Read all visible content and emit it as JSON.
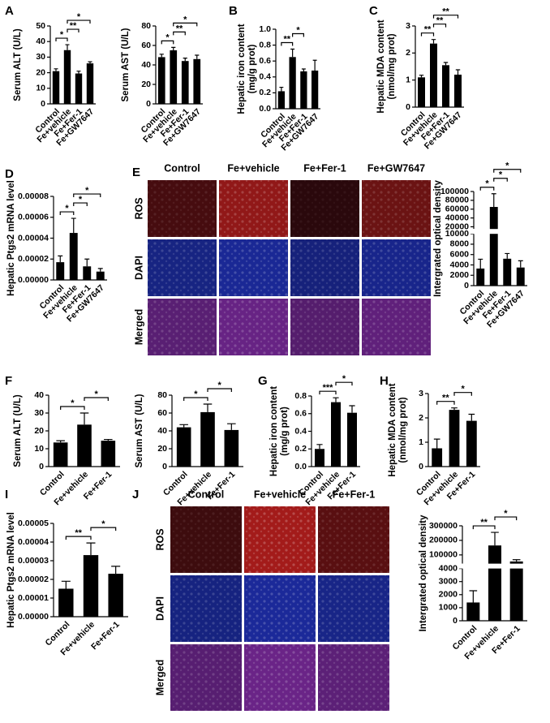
{
  "chart_data": [
    {
      "type": "bar",
      "panel": "A",
      "ylabel": [
        "Serum ALT  (U/L)"
      ],
      "categories": [
        "Control",
        "Fe+vehicle",
        "Fe+Fer-1",
        "Fe+GW7647"
      ],
      "values": [
        21,
        34.5,
        19.5,
        26
      ],
      "errors": [
        1.5,
        3.5,
        1.5,
        1
      ],
      "ylim": [
        0,
        50
      ],
      "yticks": [
        0,
        10,
        20,
        30,
        40,
        50
      ],
      "brackets": [
        {
          "between": [
            0,
            1
          ],
          "label": "*"
        },
        {
          "between": [
            1,
            2
          ],
          "label": "**"
        },
        {
          "between": [
            1,
            3
          ],
          "label": "*"
        }
      ]
    },
    {
      "type": "bar",
      "ylabel": [
        "Serum AST  (U/L)"
      ],
      "categories": [
        "Control",
        "Fe+vehicle",
        "Fe+Fer-1",
        "Fe+GW7647"
      ],
      "values": [
        48,
        55,
        44,
        46
      ],
      "errors": [
        3,
        3,
        3,
        4
      ],
      "ylim": [
        0,
        80
      ],
      "yticks": [
        0,
        20,
        40,
        60,
        80
      ],
      "brackets": [
        {
          "between": [
            0,
            1
          ],
          "label": "*"
        },
        {
          "between": [
            1,
            2
          ],
          "label": "**"
        },
        {
          "between": [
            1,
            3
          ],
          "label": "*"
        }
      ]
    },
    {
      "type": "bar",
      "panel": "B",
      "ylabel": [
        "Hepatic iron content",
        "(mg/g prot)"
      ],
      "categories": [
        "Control",
        "Fe+vehicle",
        "Fe+Fer-1",
        "Fe+GW7647"
      ],
      "values": [
        0.22,
        0.65,
        0.47,
        0.48
      ],
      "errors": [
        0.05,
        0.1,
        0.03,
        0.13
      ],
      "ylim": [
        0,
        1
      ],
      "yticks": [
        {
          "value": 0,
          "label": "0.0"
        },
        0.2,
        0.4,
        0.6,
        0.8,
        {
          "value": 1,
          "label": "1.0"
        }
      ],
      "brackets": [
        {
          "between": [
            0,
            1
          ],
          "label": "**"
        },
        {
          "between": [
            1,
            2
          ],
          "label": "*"
        }
      ]
    },
    {
      "type": "bar",
      "panel": "C",
      "ylabel": [
        "Hepatic MDA content",
        "(nmol/mg prot)"
      ],
      "categories": [
        "Control",
        "Fe+vehicle",
        "Fe+Fer-1",
        "Fe+GW7647"
      ],
      "values": [
        1.1,
        2.35,
        1.55,
        1.2
      ],
      "errors": [
        0.08,
        0.15,
        0.1,
        0.18
      ],
      "ylim": [
        0,
        3
      ],
      "yticks": [
        0,
        1,
        2,
        3
      ],
      "brackets": [
        {
          "between": [
            0,
            1
          ],
          "label": "**"
        },
        {
          "between": [
            1,
            2
          ],
          "label": "**"
        },
        {
          "between": [
            1,
            3
          ],
          "label": "**"
        }
      ]
    },
    {
      "type": "bar",
      "panel": "D",
      "ylabel": [
        "Hepatic Ptgs2 mRNA level"
      ],
      "categories": [
        "Control",
        "Fe+vehicle",
        "Fe+Fer-1",
        "Fe+GW7647"
      ],
      "values": [
        1.7e-05,
        4.5e-05,
        1.3e-05,
        8e-06
      ],
      "errors": [
        6e-06,
        1.4e-05,
        7e-06,
        3e-06
      ],
      "ylim": [
        0,
        8e-05
      ],
      "yticks": [
        {
          "value": 0,
          "label": "0.00000"
        },
        {
          "value": 2e-05,
          "label": "0.00002"
        },
        {
          "value": 4e-05,
          "label": "0.00004"
        },
        {
          "value": 6e-05,
          "label": "0.00006"
        },
        {
          "value": 8e-05,
          "label": "0.00008"
        }
      ],
      "brackets": [
        {
          "between": [
            0,
            1
          ],
          "label": "*"
        },
        {
          "between": [
            1,
            2
          ],
          "label": "*"
        },
        {
          "between": [
            1,
            3
          ],
          "label": "*"
        }
      ]
    },
    {
      "type": "bar",
      "ylabel": [
        "Intergrated optical density"
      ],
      "categories": [
        "Control",
        "Fe+vehicle",
        "Fe+Fer-1",
        "Fe+GW7647"
      ],
      "values": [
        3300,
        65000,
        5200,
        3500
      ],
      "errors": [
        1800,
        30000,
        1000,
        1300
      ],
      "segments": [
        {
          "ylim": [
            0,
            10000
          ],
          "yticks": [
            0,
            2000,
            4000,
            6000,
            8000,
            10000
          ]
        },
        {
          "ylim": [
            15000,
            100000
          ],
          "yticks": [
            20000,
            40000,
            60000,
            80000,
            100000
          ]
        }
      ],
      "brackets": [
        {
          "between": [
            0,
            1
          ],
          "label": "*"
        },
        {
          "between": [
            1,
            2
          ],
          "label": "*"
        },
        {
          "between": [
            1,
            3
          ],
          "label": "*"
        }
      ]
    },
    {
      "type": "bar",
      "panel": "F",
      "ylabel": [
        "Serum ALT  (U/L)"
      ],
      "categories": [
        "Control",
        "Fe+vehicle",
        "Fe+Fer-1"
      ],
      "values": [
        13.5,
        23.5,
        14.5
      ],
      "errors": [
        1,
        6.5,
        0.7
      ],
      "ylim": [
        0,
        40
      ],
      "yticks": [
        0,
        10,
        20,
        30,
        40
      ],
      "brackets": [
        {
          "between": [
            0,
            1
          ],
          "label": "*"
        },
        {
          "between": [
            1,
            2
          ],
          "label": "*"
        }
      ]
    },
    {
      "type": "bar",
      "ylabel": [
        "Serum AST  (U/L)"
      ],
      "categories": [
        "Control",
        "Fe+vehicle",
        "Fe+Fer-1"
      ],
      "values": [
        44,
        61,
        41
      ],
      "errors": [
        3,
        9,
        7
      ],
      "ylim": [
        0,
        80
      ],
      "yticks": [
        0,
        20,
        40,
        60,
        80
      ],
      "brackets": [
        {
          "between": [
            0,
            1
          ],
          "label": "*"
        },
        {
          "between": [
            1,
            2
          ],
          "label": "*"
        }
      ]
    },
    {
      "type": "bar",
      "panel": "G",
      "ylabel": [
        "Hepatic iron content",
        "(mg/g prot)"
      ],
      "categories": [
        "Control",
        "Fe+vehicle",
        "Fe+Fer-1"
      ],
      "values": [
        0.2,
        0.73,
        0.61
      ],
      "errors": [
        0.05,
        0.05,
        0.08
      ],
      "ylim": [
        0,
        0.8
      ],
      "yticks": [
        {
          "value": 0,
          "label": "0.0"
        },
        0.2,
        0.4,
        0.6,
        0.8
      ],
      "brackets": [
        {
          "between": [
            0,
            1
          ],
          "label": "***"
        },
        {
          "between": [
            1,
            2
          ],
          "label": "*"
        }
      ]
    },
    {
      "type": "bar",
      "panel": "H",
      "ylabel": [
        "Hepatic MDA content",
        "(nmol/mg prot)"
      ],
      "categories": [
        "Control",
        "Fe+vehicle",
        "Fe+Fer-1"
      ],
      "values": [
        0.75,
        2.33,
        1.88
      ],
      "errors": [
        0.38,
        0.08,
        0.27
      ],
      "ylim": [
        0,
        3
      ],
      "yticks": [
        0,
        1,
        2,
        3
      ],
      "brackets": [
        {
          "between": [
            0,
            1
          ],
          "label": "**"
        },
        {
          "between": [
            1,
            2
          ],
          "label": "*"
        }
      ]
    },
    {
      "type": "bar",
      "panel": "I",
      "ylabel": [
        "Hepatic Ptgs2 mRNA level"
      ],
      "categories": [
        "Control",
        "Fe+vehicle",
        "Fe+Fer-1"
      ],
      "values": [
        1.5e-05,
        3.3e-05,
        2.3e-05
      ],
      "errors": [
        4e-06,
        6.5e-06,
        4e-06
      ],
      "ylim": [
        0,
        5e-05
      ],
      "yticks": [
        {
          "value": 0,
          "label": "0.00000"
        },
        {
          "value": 1e-05,
          "label": "0.00001"
        },
        {
          "value": 2e-05,
          "label": "0.00002"
        },
        {
          "value": 3e-05,
          "label": "0.00003"
        },
        {
          "value": 4e-05,
          "label": "0.00004"
        },
        {
          "value": 5e-05,
          "label": "0.00005"
        }
      ],
      "brackets": [
        {
          "between": [
            0,
            1
          ],
          "label": "**"
        },
        {
          "between": [
            1,
            2
          ],
          "label": "*"
        }
      ]
    },
    {
      "type": "bar",
      "ylabel": [
        "Intergrated optical density"
      ],
      "categories": [
        "Control",
        "Fe+vehicle",
        "Fe+Fer-1"
      ],
      "values": [
        1400,
        165000,
        55000
      ],
      "errors": [
        900,
        90000,
        12000
      ],
      "segments": [
        {
          "ylim": [
            0,
            4000
          ],
          "yticks": [
            0,
            1000,
            2000,
            3000,
            4000
          ]
        },
        {
          "ylim": [
            40000,
            300000
          ],
          "yticks": [
            100000,
            200000,
            300000
          ]
        }
      ],
      "brackets": [
        {
          "between": [
            0,
            1
          ],
          "label": "**"
        },
        {
          "between": [
            1,
            2
          ],
          "label": "*"
        }
      ]
    }
  ],
  "image_panels": [
    {
      "panel": "E",
      "columns": [
        "Control",
        "Fe+vehicle",
        "Fe+Fer-1",
        "Fe+GW7647"
      ],
      "rows": [
        "ROS",
        "DAPI",
        "Merged"
      ]
    },
    {
      "panel": "J",
      "columns": [
        "Control",
        "Fe+vehicle",
        "Fe+Fer-1"
      ],
      "rows": [
        "ROS",
        "DAPI",
        "Merged"
      ]
    }
  ]
}
